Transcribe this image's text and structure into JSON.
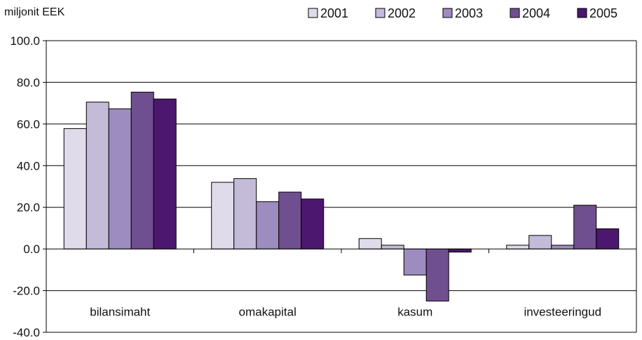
{
  "chart_data": {
    "type": "bar",
    "unit_label": "miljonit EEK",
    "categories": [
      "bilansimaht",
      "omakapital",
      "kasum",
      "investeeringud"
    ],
    "series": [
      {
        "name": "2001",
        "color": "#e0dbea",
        "values": [
          57.8,
          32.0,
          5.0,
          1.8
        ]
      },
      {
        "name": "2002",
        "color": "#c4bbd8",
        "values": [
          70.5,
          33.8,
          1.8,
          6.5
        ]
      },
      {
        "name": "2003",
        "color": "#9d8cbf",
        "values": [
          67.3,
          22.7,
          -12.5,
          1.8
        ]
      },
      {
        "name": "2004",
        "color": "#6f4f90",
        "values": [
          75.3,
          27.3,
          -25.0,
          21.0
        ]
      },
      {
        "name": "2005",
        "color": "#4c176e",
        "values": [
          72.0,
          24.0,
          -1.5,
          9.7
        ]
      }
    ],
    "ylim": [
      -40,
      100
    ],
    "yticks": [
      -40,
      -20,
      0,
      20,
      40,
      60,
      80,
      100
    ],
    "ytick_labels": [
      "-40.0",
      "-20.0",
      "0.0",
      "20.0",
      "40.0",
      "60.0",
      "80.0",
      "100.0"
    ],
    "grid": true,
    "legend_position": "top-right"
  }
}
